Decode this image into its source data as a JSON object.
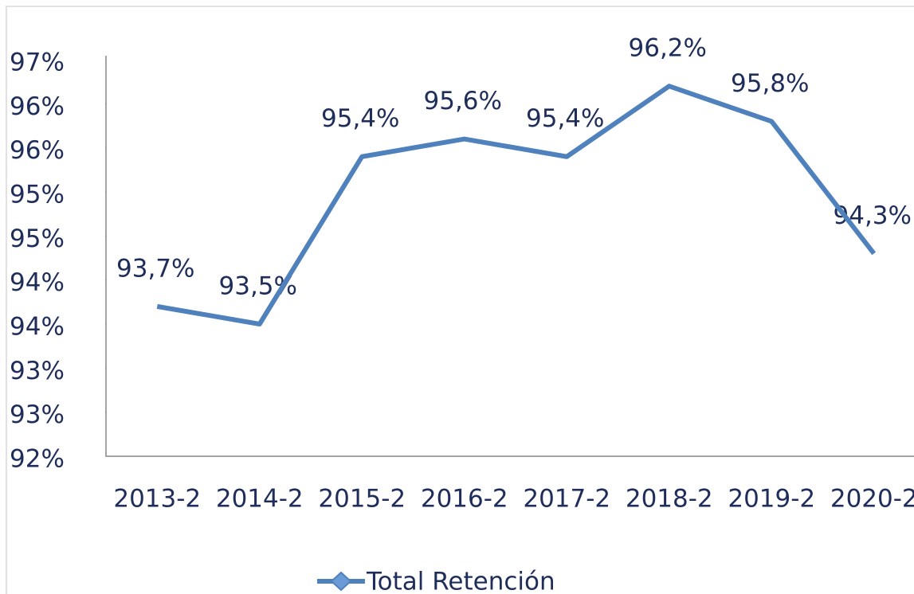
{
  "chart_data": {
    "type": "line",
    "categories": [
      "2013-2",
      "2014-2",
      "2015-2",
      "2016-2",
      "2017-2",
      "2018-2",
      "2019-2",
      "2020-2"
    ],
    "series": [
      {
        "name": "Total Retención",
        "color": "#4f81bd",
        "values": [
          93.7,
          93.5,
          95.4,
          95.6,
          95.4,
          96.2,
          95.8,
          94.3
        ],
        "value_labels": [
          "93,7%",
          "93,5%",
          "95,4%",
          "95,6%",
          "95,4%",
          "96,2%",
          "95,8%",
          "94,3%"
        ]
      }
    ],
    "ylim": [
      92,
      96.5
    ],
    "yticks": [
      {
        "value": 92,
        "label": "92%"
      },
      {
        "value": 92.5,
        "label": "93%"
      },
      {
        "value": 93,
        "label": "93%"
      },
      {
        "value": 93.5,
        "label": "94%"
      },
      {
        "value": 94,
        "label": "94%"
      },
      {
        "value": 94.5,
        "label": "95%"
      },
      {
        "value": 95,
        "label": "95%"
      },
      {
        "value": 95.5,
        "label": "96%"
      },
      {
        "value": 96,
        "label": "96%"
      },
      {
        "value": 96.5,
        "label": "97%"
      }
    ],
    "legend": "bottom"
  }
}
